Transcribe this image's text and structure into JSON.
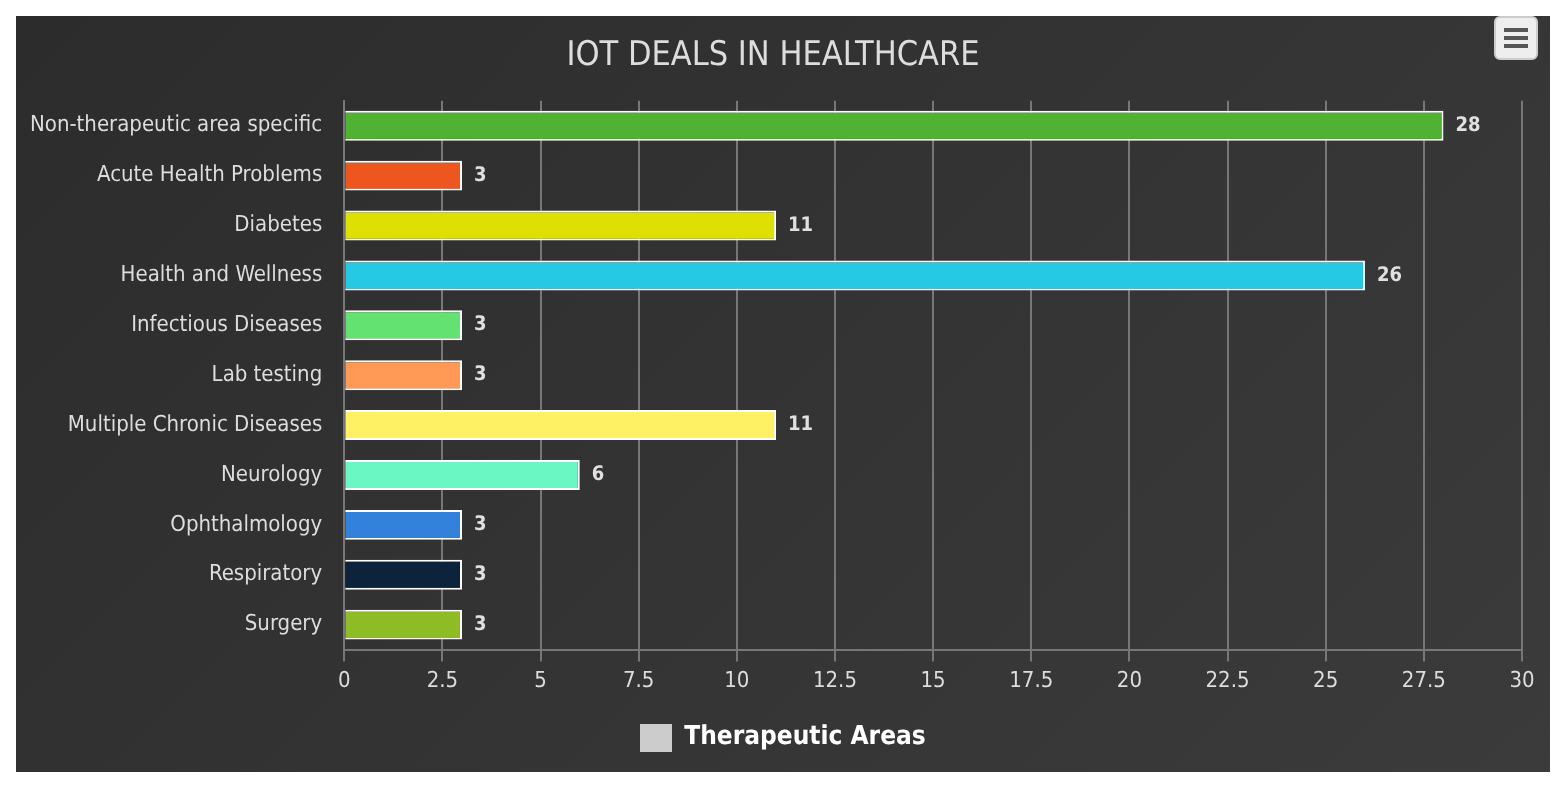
{
  "chart_data": {
    "type": "bar",
    "orientation": "horizontal",
    "title": "IOT DEALS IN HEALTHCARE",
    "categories": [
      "Non-therapeutic area specific",
      "Acute Health Problems",
      "Diabetes",
      "Health and Wellness",
      "Infectious Diseases",
      "Lab testing",
      "Multiple Chronic Diseases",
      "Neurology",
      "Ophthalmology",
      "Respiratory",
      "Surgery"
    ],
    "series": [
      {
        "name": "Therapeutic Areas",
        "color": "#cccccc",
        "colors": [
          "#4fb233",
          "#ee561f",
          "#dde000",
          "#26c9e4",
          "#64e271",
          "#ff9955",
          "#fff163",
          "#6af7c3",
          "#3282db",
          "#0d223b",
          "#8ebc25"
        ],
        "values": [
          28,
          3,
          11,
          26,
          3,
          3,
          11,
          6,
          3,
          3,
          3
        ]
      }
    ],
    "xlim": [
      0,
      30
    ],
    "xticks": [
      0,
      2.5,
      5,
      7.5,
      10,
      12.5,
      15,
      17.5,
      20,
      22.5,
      25,
      27.5,
      30
    ],
    "grid": "x",
    "legend": "bottom",
    "data_labels": true
  }
}
